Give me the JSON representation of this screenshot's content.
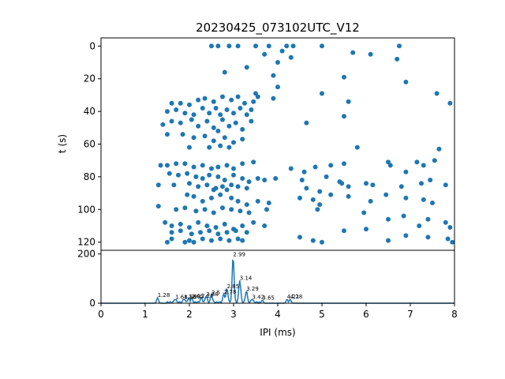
{
  "chart_data": [
    {
      "type": "scatter",
      "title": "20230425_073102UTC_V12",
      "xlabel": "",
      "ylabel": "t (s)",
      "xlim": [
        0,
        8
      ],
      "ylim": [
        125,
        -5
      ],
      "y_inverted": true,
      "yticks": [
        0,
        20,
        40,
        60,
        80,
        100,
        120
      ],
      "color": "#1f77b4",
      "points": [
        [
          2.5,
          0
        ],
        [
          2.65,
          0
        ],
        [
          2.9,
          0
        ],
        [
          3.1,
          0
        ],
        [
          3.5,
          0
        ],
        [
          3.8,
          0
        ],
        [
          4.2,
          0
        ],
        [
          4.35,
          0
        ],
        [
          5.0,
          0
        ],
        [
          6.75,
          0
        ],
        [
          3.7,
          5
        ],
        [
          4.1,
          3
        ],
        [
          4.3,
          7
        ],
        [
          4.0,
          10
        ],
        [
          5.7,
          4
        ],
        [
          6.1,
          5
        ],
        [
          6.7,
          8
        ],
        [
          3.9,
          18
        ],
        [
          3.3,
          13
        ],
        [
          4.0,
          25
        ],
        [
          5.5,
          19
        ],
        [
          6.9,
          22
        ],
        [
          2.8,
          16
        ],
        [
          3.5,
          29
        ],
        [
          3.9,
          32
        ],
        [
          5.0,
          29
        ],
        [
          5.6,
          34
        ],
        [
          7.6,
          29
        ],
        [
          7.9,
          35
        ],
        [
          4.65,
          47
        ],
        [
          5.5,
          43
        ],
        [
          1.6,
          35
        ],
        [
          1.8,
          35
        ],
        [
          2.0,
          36
        ],
        [
          2.2,
          33
        ],
        [
          2.35,
          32
        ],
        [
          2.55,
          34
        ],
        [
          2.75,
          31
        ],
        [
          2.95,
          33
        ],
        [
          3.1,
          31
        ],
        [
          3.25,
          35
        ],
        [
          3.45,
          34
        ],
        [
          3.55,
          31
        ],
        [
          1.5,
          40
        ],
        [
          1.7,
          39
        ],
        [
          1.9,
          41
        ],
        [
          2.1,
          42
        ],
        [
          2.3,
          38
        ],
        [
          2.45,
          41
        ],
        [
          2.6,
          38
        ],
        [
          2.7,
          42
        ],
        [
          2.85,
          39
        ],
        [
          3.0,
          41
        ],
        [
          3.15,
          38
        ],
        [
          3.3,
          42
        ],
        [
          3.4,
          39
        ],
        [
          1.4,
          48
        ],
        [
          1.6,
          46
        ],
        [
          1.8,
          47
        ],
        [
          2.05,
          45
        ],
        [
          2.2,
          49
        ],
        [
          2.4,
          46
        ],
        [
          2.55,
          50
        ],
        [
          2.75,
          45
        ],
        [
          2.9,
          49
        ],
        [
          3.05,
          47
        ],
        [
          3.2,
          51
        ],
        [
          3.4,
          46
        ],
        [
          2.65,
          52
        ],
        [
          1.85,
          54
        ],
        [
          2.1,
          56
        ],
        [
          2.35,
          55
        ],
        [
          2.55,
          58
        ],
        [
          2.8,
          56
        ],
        [
          3.0,
          59
        ],
        [
          3.2,
          57
        ],
        [
          2.7,
          61
        ],
        [
          1.5,
          54
        ],
        [
          2.0,
          62
        ],
        [
          2.45,
          62
        ],
        [
          2.9,
          62
        ],
        [
          1.35,
          73
        ],
        [
          1.5,
          73
        ],
        [
          1.7,
          72
        ],
        [
          1.9,
          72
        ],
        [
          2.1,
          74
        ],
        [
          2.3,
          73
        ],
        [
          2.5,
          75
        ],
        [
          2.65,
          74
        ],
        [
          2.85,
          73
        ],
        [
          3.0,
          75
        ],
        [
          3.2,
          72
        ],
        [
          3.45,
          71
        ],
        [
          1.55,
          78
        ],
        [
          1.75,
          79
        ],
        [
          1.95,
          78
        ],
        [
          2.15,
          80
        ],
        [
          2.3,
          81
        ],
        [
          2.45,
          79
        ],
        [
          2.65,
          80
        ],
        [
          2.8,
          82
        ],
        [
          3.0,
          79
        ],
        [
          3.2,
          81
        ],
        [
          3.35,
          83
        ],
        [
          3.55,
          81
        ],
        [
          3.7,
          82
        ],
        [
          3.95,
          81
        ],
        [
          1.3,
          85
        ],
        [
          1.65,
          85
        ],
        [
          2.0,
          84
        ],
        [
          2.2,
          86
        ],
        [
          2.4,
          85
        ],
        [
          2.6,
          87
        ],
        [
          2.75,
          86
        ],
        [
          2.95,
          85
        ],
        [
          3.1,
          86
        ],
        [
          3.3,
          87
        ],
        [
          2.55,
          88
        ],
        [
          2.85,
          88
        ],
        [
          4.3,
          75
        ],
        [
          4.6,
          77
        ],
        [
          4.85,
          74
        ],
        [
          5.2,
          73
        ],
        [
          5.5,
          72
        ],
        [
          4.55,
          82
        ],
        [
          5.1,
          80
        ],
        [
          5.4,
          83
        ],
        [
          6.5,
          71
        ],
        [
          6.55,
          73
        ],
        [
          6.9,
          77
        ],
        [
          7.3,
          73
        ],
        [
          7.55,
          70
        ],
        [
          7.15,
          71
        ],
        [
          7.65,
          63
        ],
        [
          5.8,
          62
        ],
        [
          4.65,
          87
        ],
        [
          4.95,
          89
        ],
        [
          5.45,
          84
        ],
        [
          5.6,
          86
        ],
        [
          6.0,
          84
        ],
        [
          6.15,
          85
        ],
        [
          6.8,
          86
        ],
        [
          7.25,
          84
        ],
        [
          7.8,
          85
        ],
        [
          7.45,
          82
        ],
        [
          4.5,
          93
        ],
        [
          4.8,
          94
        ],
        [
          4.95,
          97
        ],
        [
          5.2,
          91
        ],
        [
          5.6,
          92
        ],
        [
          6.1,
          95
        ],
        [
          6.45,
          91
        ],
        [
          6.9,
          93
        ],
        [
          7.3,
          94
        ],
        [
          7.5,
          96
        ],
        [
          1.95,
          91
        ],
        [
          2.1,
          92
        ],
        [
          2.3,
          95
        ],
        [
          2.5,
          93
        ],
        [
          2.7,
          91
        ],
        [
          2.95,
          93
        ],
        [
          3.1,
          95
        ],
        [
          3.3,
          97
        ],
        [
          3.55,
          95
        ],
        [
          3.8,
          96
        ],
        [
          1.3,
          98
        ],
        [
          1.7,
          100
        ],
        [
          1.9,
          99
        ],
        [
          2.15,
          101
        ],
        [
          2.35,
          100
        ],
        [
          2.55,
          102
        ],
        [
          2.75,
          99
        ],
        [
          2.95,
          100
        ],
        [
          3.15,
          101
        ],
        [
          3.35,
          102
        ],
        [
          3.75,
          100
        ],
        [
          4.9,
          100
        ],
        [
          5.95,
          102
        ],
        [
          1.45,
          108
        ],
        [
          1.6,
          110
        ],
        [
          1.8,
          109
        ],
        [
          2.0,
          111
        ],
        [
          2.2,
          108
        ],
        [
          2.4,
          110
        ],
        [
          2.6,
          111
        ],
        [
          2.8,
          109
        ],
        [
          3.0,
          112
        ],
        [
          3.2,
          110
        ],
        [
          3.45,
          108
        ],
        [
          3.7,
          110
        ],
        [
          6.5,
          106
        ],
        [
          6.85,
          104
        ],
        [
          7.4,
          106
        ],
        [
          7.8,
          108
        ],
        [
          1.6,
          114
        ],
        [
          1.8,
          113
        ],
        [
          2.05,
          115
        ],
        [
          2.25,
          114
        ],
        [
          2.45,
          113
        ],
        [
          2.65,
          115
        ],
        [
          2.85,
          114
        ],
        [
          3.05,
          113
        ],
        [
          3.3,
          114
        ],
        [
          5.5,
          113
        ],
        [
          6.0,
          112
        ],
        [
          7.2,
          110
        ],
        [
          7.9,
          111
        ],
        [
          1.6,
          118
        ],
        [
          1.9,
          120
        ],
        [
          2.1,
          120
        ],
        [
          2.3,
          118
        ],
        [
          2.5,
          119
        ],
        [
          2.7,
          118
        ],
        [
          2.9,
          119
        ],
        [
          3.1,
          118
        ],
        [
          4.5,
          117
        ],
        [
          4.8,
          119
        ],
        [
          5.0,
          120
        ],
        [
          6.5,
          119
        ],
        [
          6.9,
          116
        ],
        [
          7.4,
          117
        ],
        [
          7.85,
          118
        ],
        [
          7.95,
          120
        ],
        [
          1.5,
          120
        ],
        [
          2.0,
          119
        ],
        [
          3.2,
          119
        ]
      ]
    },
    {
      "type": "line",
      "xlabel": "IPI (ms)",
      "ylabel": "",
      "xlim": [
        0,
        8
      ],
      "ylim": [
        0,
        215
      ],
      "xticks": [
        "0",
        "1",
        "2",
        "3",
        "4",
        "5",
        "6",
        "7",
        "8"
      ],
      "yticks": [
        "0",
        "200"
      ],
      "color": "#1f77b4",
      "peak_labels": [
        {
          "x": 2.99,
          "y": 188,
          "label": "2.99"
        },
        {
          "x": 3.14,
          "y": 92,
          "label": "3.14"
        },
        {
          "x": 2.85,
          "y": 58,
          "label": "2.85"
        },
        {
          "x": 3.29,
          "y": 48,
          "label": "3.29"
        },
        {
          "x": 2.78,
          "y": 35,
          "label": "2.78"
        },
        {
          "x": 2.5,
          "y": 32,
          "label": "2.5"
        },
        {
          "x": 2.38,
          "y": 26,
          "label": "2.38"
        },
        {
          "x": 2.27,
          "y": 20,
          "label": "2.27"
        },
        {
          "x": 2.05,
          "y": 18,
          "label": "2.05"
        },
        {
          "x": 1.98,
          "y": 16,
          "label": "1.98"
        },
        {
          "x": 1.28,
          "y": 22,
          "label": "1.28"
        },
        {
          "x": 1.68,
          "y": 14,
          "label": "1.68"
        },
        {
          "x": 1.88,
          "y": 14,
          "label": "1.88"
        },
        {
          "x": 3.42,
          "y": 14,
          "label": "3.42"
        },
        {
          "x": 3.65,
          "y": 12,
          "label": "3.65"
        },
        {
          "x": 4.21,
          "y": 16,
          "label": "4.21"
        },
        {
          "x": 4.28,
          "y": 16,
          "label": "4.28"
        }
      ]
    }
  ]
}
